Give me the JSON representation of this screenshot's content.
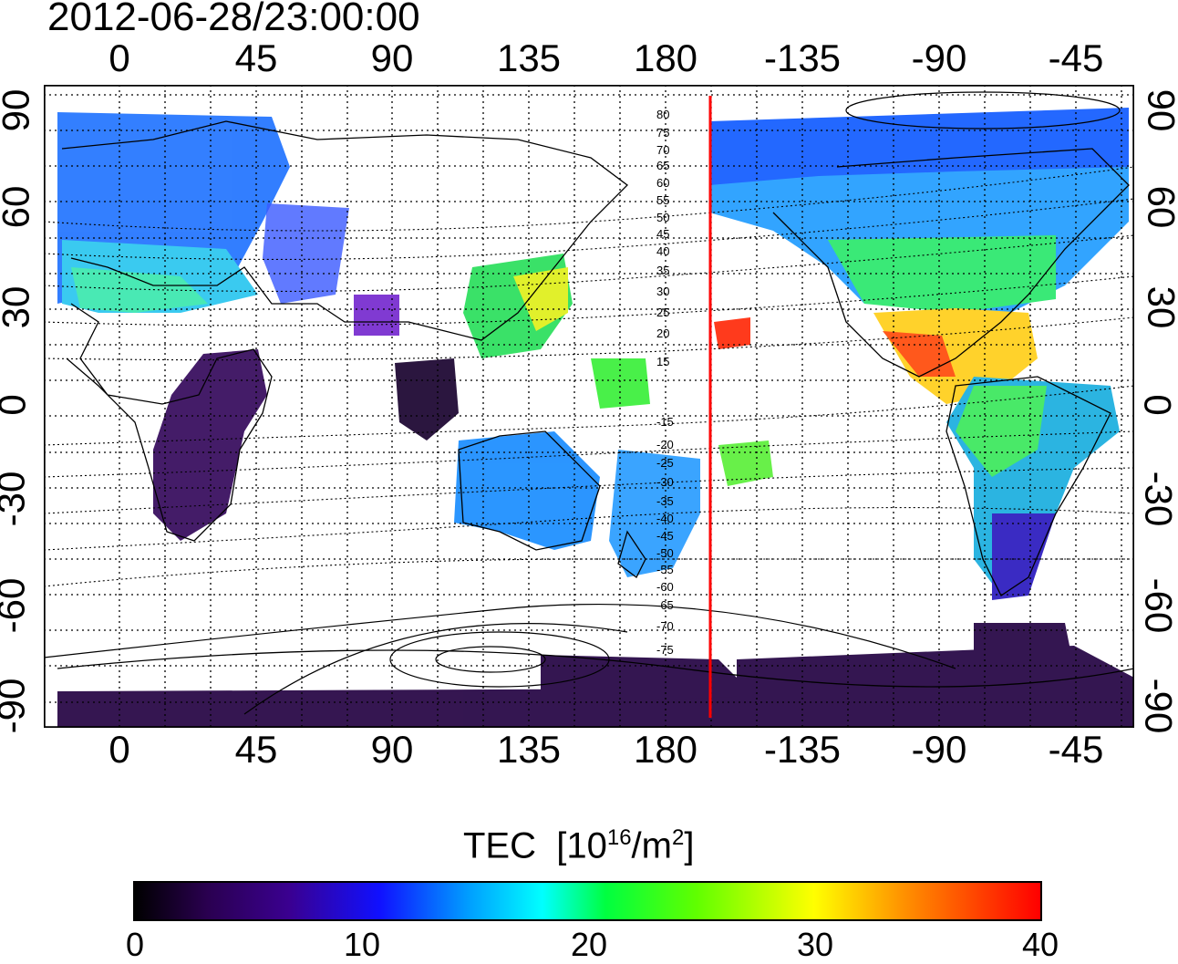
{
  "timestamp": "2012-06-28/23:00:00",
  "map": {
    "x_ticks": [
      "0",
      "45",
      "90",
      "135",
      "180",
      "-135",
      "-90",
      "-45"
    ],
    "y_ticks": [
      "90",
      "60",
      "30",
      "0",
      "-30",
      "-60",
      "-90"
    ],
    "contour_labels": [
      "80",
      "75",
      "70",
      "65",
      "60",
      "55",
      "50",
      "45",
      "40",
      "35",
      "30",
      "25",
      "20",
      "15",
      "-15",
      "-20",
      "-25",
      "-30",
      "-35",
      "-40",
      "-45",
      "-50",
      "-55",
      "-60",
      "-65",
      "-70",
      "-75"
    ],
    "marker_line_longitude": -153,
    "marker_line_color": "#ff0000"
  },
  "colorbar": {
    "title": "TEC",
    "unit_prefix": "[10",
    "unit_exp": "16",
    "unit_mid": "/m",
    "unit_exp2": "2",
    "unit_suffix": "]",
    "ticks": [
      "0",
      "10",
      "20",
      "30",
      "40"
    ],
    "range": [
      0,
      40
    ],
    "colors": [
      "#000000",
      "#3a0090",
      "#1010ff",
      "#00ffff",
      "#00ff40",
      "#ffff00",
      "#ff0000"
    ]
  }
}
